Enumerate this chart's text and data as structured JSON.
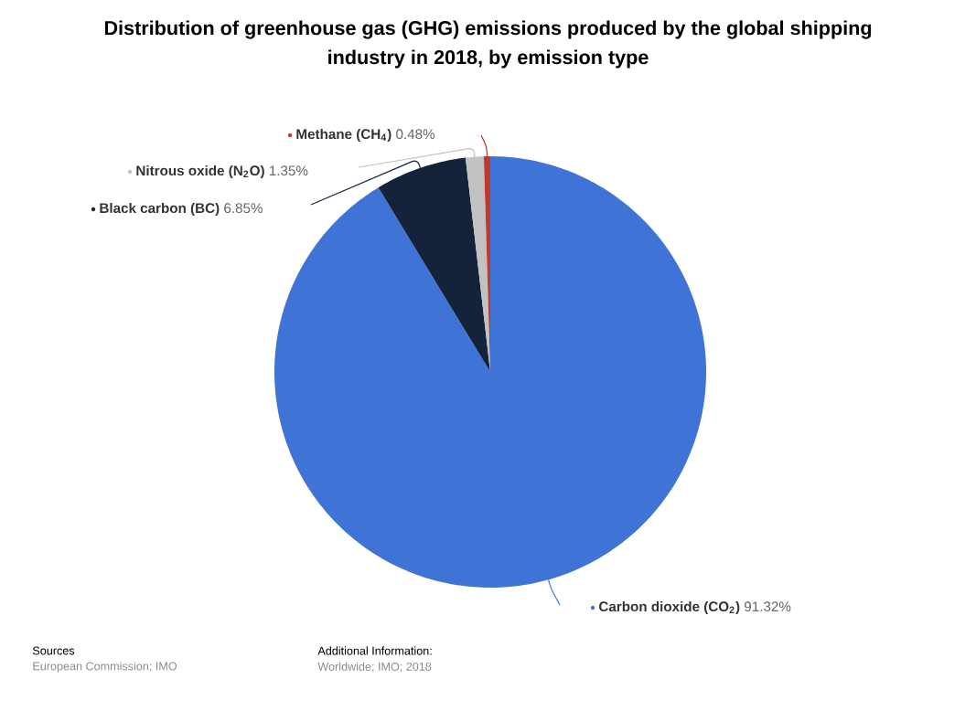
{
  "chart_data": {
    "type": "pie",
    "title": "Distribution of greenhouse gas (GHG) emissions produced by the global shipping industry in 2018, by emission type",
    "categories": [
      "Carbon dioxide (CO$_{2}$)",
      "Black carbon (BC)",
      "Nitrous oxide (N$_{2}$O)",
      "Methane (CH$_{4}$)"
    ],
    "values": [
      91.32,
      6.85,
      1.35,
      0.48
    ],
    "colors": [
      "#3f74d6",
      "#15233a",
      "#c2c2c2",
      "#c0392b"
    ],
    "legend": "top left",
    "value_labels": [
      "91.32%",
      "6.85%",
      "1.35%",
      "0.48%"
    ],
    "annotations": [
      "Sources",
      "European Commission; IMO",
      "Additional Information:",
      "Worldwide; IMO; 2018"
    ]
  }
}
